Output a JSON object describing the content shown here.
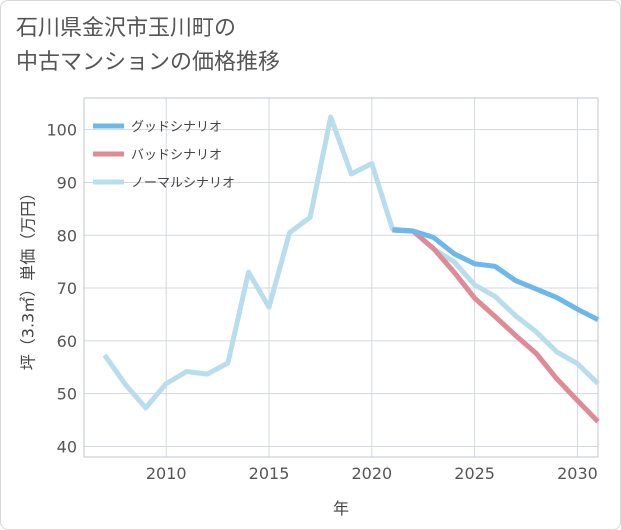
{
  "chart_data": {
    "type": "line",
    "title_line1": "石川県金沢市玉川町の",
    "title_line2": "中古マンションの価格推移",
    "xlabel": "年",
    "ylabel": "坪（3.3㎡）単価（万円）",
    "xlim": [
      2006,
      2031
    ],
    "ylim": [
      38,
      106
    ],
    "xticks": [
      2010,
      2015,
      2020,
      2025,
      2030
    ],
    "yticks": [
      40,
      50,
      60,
      70,
      80,
      90,
      100
    ],
    "legend_position": "top-left",
    "series": [
      {
        "name": "グッドシナリオ",
        "color": "#6cb7ec",
        "x": [
          2021,
          2022,
          2023,
          2024,
          2025,
          2026,
          2027,
          2028,
          2029,
          2030,
          2031
        ],
        "y": [
          81,
          80.8,
          79.6,
          76.5,
          74.6,
          74.1,
          71.4,
          69.8,
          68.2,
          66.0,
          64.0
        ]
      },
      {
        "name": "バッドシナリオ",
        "color": "#e08a95",
        "x": [
          2021,
          2022,
          2023,
          2024,
          2025,
          2026,
          2027,
          2028,
          2029,
          2030,
          2031
        ],
        "y": [
          81,
          80.8,
          77.5,
          73.0,
          68.1,
          64.6,
          61.0,
          57.6,
          52.8,
          48.7,
          44.7
        ]
      },
      {
        "name": "ノーマルシナリオ",
        "color": "#b8dded",
        "x": [
          2007,
          2008,
          2009,
          2010,
          2011,
          2012,
          2013,
          2014,
          2015,
          2016,
          2017,
          2018,
          2019,
          2020,
          2021,
          2022,
          2023,
          2024,
          2025,
          2026,
          2027,
          2028,
          2029,
          2030,
          2031
        ],
        "y": [
          57.3,
          51.8,
          47.3,
          51.9,
          54.2,
          53.7,
          55.8,
          73.0,
          66.4,
          80.5,
          83.4,
          102.4,
          91.6,
          93.6,
          81.2,
          80.8,
          77.4,
          75.0,
          70.6,
          68.4,
          64.7,
          61.7,
          57.9,
          55.7,
          51.9
        ]
      }
    ]
  }
}
